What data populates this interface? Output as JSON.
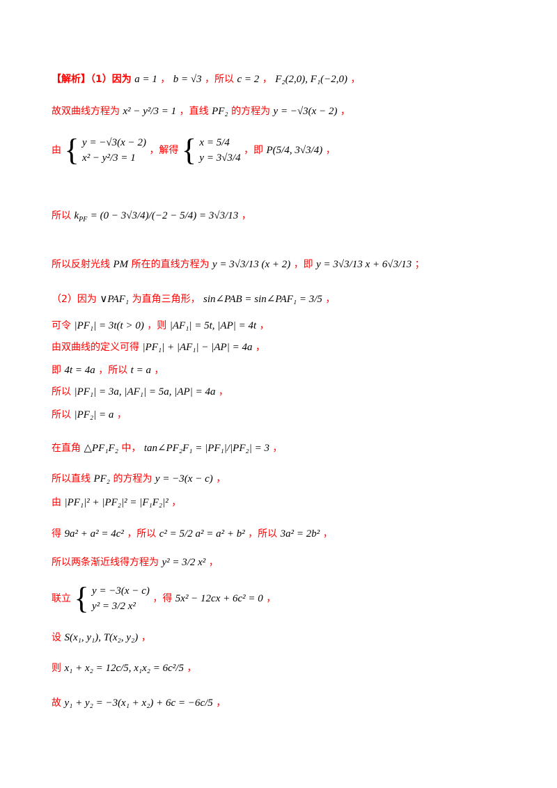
{
  "lines": {
    "l1": {
      "zh_a": "【解析】（1）因为",
      "m1": "a = 1",
      "zh_b": "，",
      "m2": "b = √3",
      "zh_c": "，所以",
      "m3": "c = 2",
      "zh_d": "，",
      "m4": "F₂(2,0), F₁(−2,0)",
      "zh_e": "，"
    },
    "l2": {
      "zh_a": "故双曲线方程为",
      "m1": "x² − y²/3 = 1",
      "zh_b": "，直线",
      "m2": "PF₂",
      "zh_c": "的方程为",
      "m3": "y = −√3(x − 2)",
      "zh_d": "，"
    },
    "l3": {
      "zh_a": "由",
      "sys1_a": "y = −√3(x − 2)",
      "sys1_b": "x² − y²/3 = 1",
      "zh_b": "，解得",
      "sys2_a": "x = 5/4",
      "sys2_b": "y = 3√3/4",
      "zh_c": "，即",
      "m1": "P(5/4, 3√3/4)",
      "zh_d": "，"
    },
    "l4": {
      "zh_a": "所以",
      "m1": "k",
      "m1_sub": "PF",
      "m2": "= (0 − 3√3/4)/(−2 − 5/4) = 3√3/13",
      "zh_b": "，"
    },
    "l5": {
      "zh_a": "所以反射光线",
      "m1": "PM",
      "zh_b": "所在的直线方程为",
      "m2": "y = 3√3/13 (x + 2)",
      "zh_c": "，即",
      "m3": "y = 3√3/13 x + 6√3/13",
      "zh_d": "；"
    },
    "l6": {
      "zh_a": "（2）因为",
      "m1": "∨PAF₁",
      "zh_b": "为直角三角形，",
      "m2": "sin∠PAB = sin∠PAF₁ = 3/5",
      "zh_c": "，"
    },
    "l7": {
      "zh_a": "可令",
      "m1": "|PF₁| = 3t(t > 0)",
      "zh_b": "，则",
      "m2": "|AF₁| = 5t, |AP| = 4t",
      "zh_c": "，"
    },
    "l8": {
      "zh_a": "由双曲线的定义可得",
      "m1": "|PF₁| + |AF₁| − |AP| = 4a",
      "zh_b": "，"
    },
    "l9": {
      "zh_a": "即",
      "m1": "4t = 4a",
      "zh_b": "，所以",
      "m2": "t = a",
      "zh_c": "，"
    },
    "l10": {
      "zh_a": "所以",
      "m1": "|PF₁| = 3a, |AF₁| = 5a, |AP| = 4a",
      "zh_b": "，"
    },
    "l11": {
      "zh_a": "所以",
      "m1": "|PF₂| = a",
      "zh_b": "，"
    },
    "l12": {
      "zh_a": "在直角",
      "m1": "△PF₁F₂",
      "zh_b": "中，",
      "m2": "tan∠PF₂F₁ = |PF₁|/|PF₂| = 3",
      "zh_c": "，"
    },
    "l13": {
      "zh_a": "所以直线",
      "m1": "PF₂",
      "zh_b": "的方程为",
      "m2": "y = −3(x − c)",
      "zh_c": "，"
    },
    "l14": {
      "zh_a": "由",
      "m1": "|PF₁|² + |PF₂|² = |F₁F₂|²",
      "zh_b": "，"
    },
    "l15": {
      "zh_a": "得",
      "m1": "9a² + a² = 4c²",
      "zh_b": "，所以",
      "m2": "c² = 5/2 a² = a² + b²",
      "zh_c": "，所以",
      "m3": "3a² = 2b²",
      "zh_d": "，"
    },
    "l16": {
      "zh_a": "所以两条渐近线得方程为",
      "m1": "y² = 3/2 x²",
      "zh_b": "，"
    },
    "l17": {
      "zh_a": "联立",
      "sys_a": "y = −3(x − c)",
      "sys_b": "y² = 3/2 x²",
      "zh_b": "，得",
      "m1": "5x² − 12cx + 6c² = 0",
      "zh_c": "，"
    },
    "l18": {
      "zh_a": "设",
      "m1": "S(x₁, y₁), T(x₂, y₂)",
      "zh_b": "，"
    },
    "l19": {
      "zh_a": "则",
      "m1": "x₁ + x₂ = 12c/5, x₁x₂ = 6c²/5",
      "zh_b": "，"
    },
    "l20": {
      "zh_a": "故",
      "m1": "y₁ + y₂ = −3(x₁ + x₂) + 6c = −6c/5",
      "zh_b": "，"
    }
  }
}
